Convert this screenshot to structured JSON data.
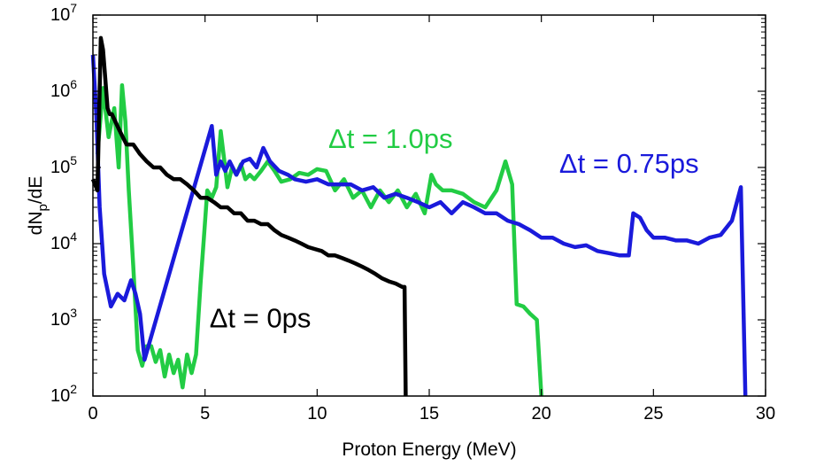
{
  "chart_data": {
    "type": "line",
    "title": "",
    "xlabel": "Proton Energy (MeV)",
    "ylabel_main": "dN",
    "ylabel_sub": "p",
    "ylabel_tail": "/dE",
    "xlim": [
      0,
      30
    ],
    "ylim": [
      100,
      10000000
    ],
    "yscale": "log",
    "grid": false,
    "legend": "none",
    "x_ticks": [
      0,
      5,
      10,
      15,
      20,
      25,
      30
    ],
    "x_tick_labels": [
      "0",
      "5",
      "10",
      "15",
      "20",
      "25",
      "30"
    ],
    "y_ticks": [
      100,
      1000,
      10000,
      100000,
      1000000,
      10000000
    ],
    "y_tick_base": [
      "10",
      "10",
      "10",
      "10",
      "10",
      "10"
    ],
    "y_tick_exp": [
      "2",
      "3",
      "4",
      "5",
      "6",
      "7"
    ],
    "annotations": [
      {
        "text": "Δt = 0ps",
        "color": "#000000",
        "x": 5.2,
        "y": 800
      },
      {
        "text": "Δt = 1.0ps",
        "color": "#22cc44",
        "x": 10.5,
        "y": 180000
      },
      {
        "text": "Δt = 0.75ps",
        "color": "#1a1adb",
        "x": 20.8,
        "y": 85000
      }
    ],
    "series": [
      {
        "color": "#22cc44",
        "x": [
          0.2,
          0.45,
          0.7,
          0.95,
          1.15,
          1.3,
          1.45,
          1.6,
          1.8,
          2.0,
          2.2,
          2.4,
          2.6,
          2.8,
          3.0,
          3.2,
          3.4,
          3.6,
          3.8,
          4.0,
          4.2,
          4.4,
          4.6,
          4.8,
          4.95,
          5.1,
          5.3,
          5.5,
          5.7,
          5.85,
          6.0,
          6.2,
          6.4,
          6.6,
          6.8,
          7.0,
          7.2,
          7.5,
          7.8,
          8.1,
          8.4,
          8.8,
          9.2,
          9.6,
          10.0,
          10.4,
          10.8,
          11.2,
          11.6,
          12.0,
          12.4,
          12.8,
          13.2,
          13.6,
          14.0,
          14.4,
          14.8,
          15.1,
          15.3,
          15.6,
          16.0,
          16.5,
          17.0,
          17.5,
          18.0,
          18.4,
          18.7,
          18.9,
          19.2,
          19.5,
          19.8,
          20.0
        ],
        "y": [
          150000,
          1100000,
          250000,
          600000,
          100000,
          1200000,
          400000,
          50000,
          5000,
          400,
          250,
          450,
          450,
          280,
          400,
          180,
          350,
          200,
          300,
          130,
          350,
          200,
          350,
          3000,
          12000,
          50000,
          40000,
          55000,
          300000,
          130000,
          55000,
          100000,
          80000,
          110000,
          70000,
          80000,
          70000,
          90000,
          120000,
          90000,
          65000,
          70000,
          85000,
          80000,
          95000,
          90000,
          50000,
          70000,
          40000,
          50000,
          30000,
          50000,
          35000,
          50000,
          30000,
          45000,
          25000,
          80000,
          60000,
          50000,
          50000,
          45000,
          35000,
          30000,
          50000,
          120000,
          60000,
          1600,
          1500,
          1200,
          1000,
          100
        ]
      },
      {
        "color": "#1a1adb",
        "x": [
          0.0,
          0.15,
          0.3,
          0.5,
          0.8,
          1.1,
          1.4,
          1.7,
          1.9,
          2.1,
          2.3,
          5.3,
          5.5,
          5.7,
          5.9,
          6.1,
          6.4,
          6.7,
          7.0,
          7.3,
          7.6,
          7.9,
          8.3,
          8.7,
          9.0,
          9.5,
          10.0,
          10.5,
          11.0,
          11.5,
          12.0,
          12.5,
          13.0,
          13.5,
          14.0,
          14.5,
          15.0,
          15.5,
          16.0,
          16.5,
          17.0,
          17.5,
          18.0,
          18.5,
          19.0,
          19.5,
          20.0,
          20.5,
          21.0,
          21.5,
          22.0,
          22.5,
          23.0,
          23.5,
          23.9,
          24.1,
          24.4,
          24.7,
          25.0,
          25.5,
          26.0,
          26.5,
          27.0,
          27.5,
          28.0,
          28.5,
          28.9,
          29.1
        ],
        "y": [
          3000000,
          500000,
          30000,
          4000,
          1500,
          2200,
          1800,
          3300,
          2200,
          1200,
          300,
          350000,
          80000,
          120000,
          90000,
          120000,
          80000,
          120000,
          130000,
          100000,
          180000,
          120000,
          90000,
          80000,
          70000,
          65000,
          70000,
          60000,
          60000,
          60000,
          50000,
          55000,
          40000,
          45000,
          40000,
          35000,
          30000,
          35000,
          25000,
          35000,
          30000,
          25000,
          25000,
          20000,
          18000,
          15000,
          12000,
          12000,
          10000,
          9000,
          9500,
          8000,
          7500,
          7000,
          7000,
          25000,
          22000,
          15000,
          12000,
          12000,
          11000,
          11000,
          10000,
          12000,
          13000,
          20000,
          55000,
          100
        ]
      },
      {
        "color": "#000000",
        "x": [
          0.0,
          0.2,
          0.35,
          0.45,
          0.55,
          0.65,
          0.75,
          0.85,
          1.0,
          1.2,
          1.5,
          1.8,
          2.1,
          2.4,
          2.7,
          3.0,
          3.3,
          3.6,
          3.9,
          4.2,
          4.5,
          4.8,
          5.1,
          5.4,
          5.7,
          6.0,
          6.3,
          6.6,
          6.9,
          7.2,
          7.5,
          7.8,
          8.1,
          8.4,
          8.7,
          9.0,
          9.3,
          9.6,
          9.9,
          10.2,
          10.5,
          10.8,
          11.1,
          11.4,
          11.7,
          12.0,
          12.3,
          12.6,
          12.9,
          13.2,
          13.5,
          13.8,
          13.9,
          13.95
        ],
        "y": [
          70000,
          50000,
          5000000,
          3500000,
          1500000,
          600000,
          500000,
          500000,
          400000,
          300000,
          200000,
          200000,
          150000,
          120000,
          100000,
          100000,
          80000,
          70000,
          70000,
          60000,
          50000,
          40000,
          40000,
          35000,
          30000,
          30000,
          25000,
          25000,
          20000,
          20000,
          18000,
          18000,
          15000,
          13000,
          12000,
          11000,
          10000,
          9000,
          8500,
          8000,
          7000,
          7000,
          6500,
          6000,
          5500,
          5000,
          4500,
          4000,
          3500,
          3200,
          3000,
          2700,
          2700,
          100
        ]
      }
    ]
  }
}
